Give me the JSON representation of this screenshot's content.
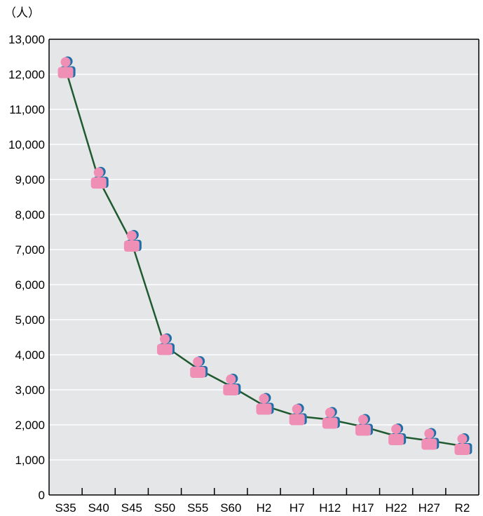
{
  "chart_data": {
    "type": "line",
    "title": "",
    "xlabel": "",
    "ylabel": "",
    "unit_label": "（人）",
    "categories": [
      "S35",
      "S40",
      "S45",
      "S50",
      "S55",
      "S60",
      "H2",
      "H7",
      "H12",
      "H17",
      "H22",
      "H27",
      "R2"
    ],
    "series": [
      {
        "values": [
          12150,
          9000,
          7200,
          4250,
          3600,
          3100,
          2550,
          2250,
          2150,
          1950,
          1680,
          1550,
          1400
        ]
      }
    ],
    "ylim": [
      0,
      13000
    ],
    "yticks": [
      0,
      1000,
      2000,
      3000,
      4000,
      5000,
      6000,
      7000,
      8000,
      9000,
      10000,
      11000,
      12000,
      13000
    ],
    "ytick_labels": [
      "0",
      "1,000",
      "2,000",
      "3,000",
      "4,000",
      "5,000",
      "6,000",
      "7,000",
      "8,000",
      "9,000",
      "10,000",
      "11,000",
      "12,000",
      "13,000"
    ],
    "grid": true,
    "marker": "person-icon",
    "colors": {
      "background": "#e5e6e8",
      "gridline": "#ffffff",
      "line": "#1f5a30",
      "marker_fill": "#ef8fb5",
      "marker_shadow": "#1f6fa8"
    }
  }
}
